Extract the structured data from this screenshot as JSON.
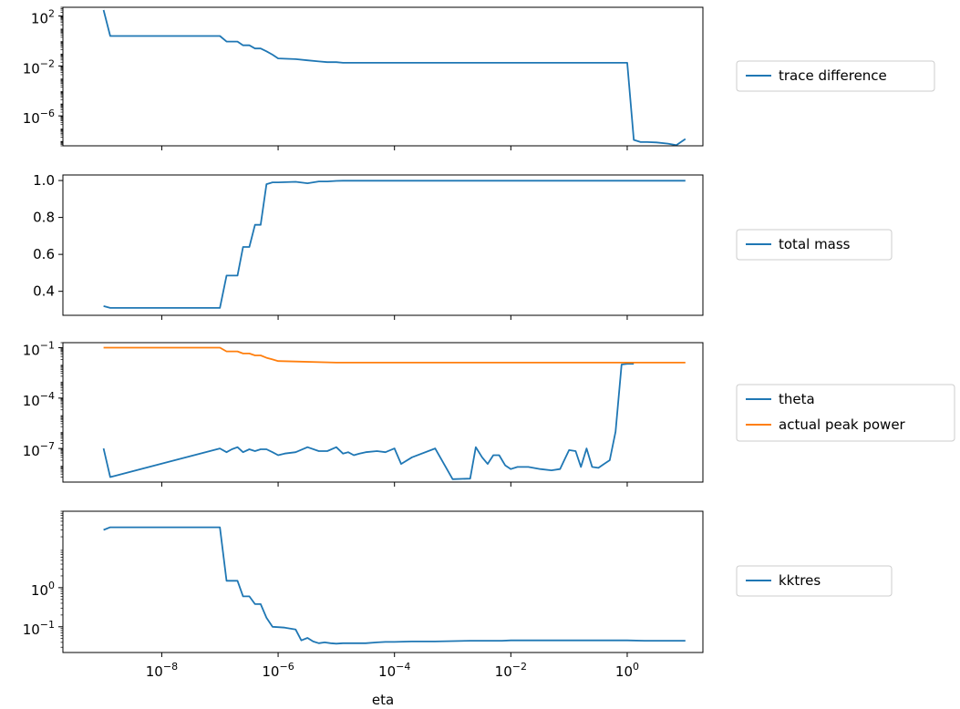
{
  "chart_data": [
    {
      "type": "line",
      "x_scale": "log",
      "y_scale": "log",
      "xlim": [
        2e-10,
        20
      ],
      "ylim": [
        4e-09,
        500
      ],
      "y_ticks": [
        {
          "value": 100,
          "label": "10",
          "exp": "2"
        },
        {
          "value": 0.01,
          "label": "10",
          "exp": "−2"
        },
        {
          "value": 1e-06,
          "label": "10",
          "exp": "−6"
        }
      ],
      "legend": "right",
      "series": [
        {
          "name": "trace difference",
          "color": "#1f77b4",
          "x": [
            1e-09,
            1.3e-09,
            1e-07,
            1.3e-07,
            2e-07,
            2.5e-07,
            3.2e-07,
            4e-07,
            5e-07,
            6.3e-07,
            8e-07,
            1e-06,
            2e-06,
            3.2e-06,
            5e-06,
            7e-06,
            1e-05,
            1.3e-05,
            0.0001,
            0.001,
            0.01,
            0.1,
            1.0,
            1.3,
            1.7,
            2.2,
            3.2,
            5.0,
            7.0,
            10.0
          ],
          "y": [
            300,
            2.5,
            2.5,
            0.9,
            0.9,
            0.45,
            0.45,
            0.25,
            0.25,
            0.15,
            0.08,
            0.04,
            0.035,
            0.028,
            0.023,
            0.02,
            0.02,
            0.018,
            0.018,
            0.018,
            0.018,
            0.018,
            0.018,
            1.2e-08,
            8e-09,
            8e-09,
            7.5e-09,
            6e-09,
            4.5e-09,
            1.4e-08
          ]
        }
      ]
    },
    {
      "type": "line",
      "x_scale": "log",
      "y_scale": "linear",
      "xlim": [
        2e-10,
        20
      ],
      "ylim": [
        0.27,
        1.03
      ],
      "y_ticks": [
        {
          "value": 1.0,
          "label": "1.0"
        },
        {
          "value": 0.8,
          "label": "0.8"
        },
        {
          "value": 0.6,
          "label": "0.6"
        },
        {
          "value": 0.4,
          "label": "0.4"
        }
      ],
      "legend": "right",
      "series": [
        {
          "name": "total mass",
          "color": "#1f77b4",
          "x": [
            1e-09,
            1.3e-09,
            1e-07,
            1.3e-07,
            2e-07,
            2.5e-07,
            3.2e-07,
            4e-07,
            5e-07,
            6.3e-07,
            8e-07,
            1e-06,
            2e-06,
            3.2e-06,
            5e-06,
            7e-06,
            1e-05,
            1.3e-05,
            3e-05,
            0.0001,
            0.001,
            0.01,
            0.1,
            1.0,
            10.0
          ],
          "y": [
            0.32,
            0.31,
            0.31,
            0.485,
            0.485,
            0.64,
            0.64,
            0.76,
            0.76,
            0.98,
            0.99,
            0.99,
            0.993,
            0.985,
            0.995,
            0.995,
            0.998,
            0.999,
            0.999,
            0.999,
            0.999,
            0.999,
            0.999,
            0.999,
            0.999
          ]
        }
      ]
    },
    {
      "type": "line",
      "x_scale": "log",
      "y_scale": "log",
      "xlim": [
        2e-10,
        20
      ],
      "ylim": [
        1e-09,
        0.2
      ],
      "y_ticks": [
        {
          "value": 0.1,
          "label": "10",
          "exp": "−1"
        },
        {
          "value": 0.0001,
          "label": "10",
          "exp": "−4"
        },
        {
          "value": 1e-07,
          "label": "10",
          "exp": "−7"
        }
      ],
      "legend": "right",
      "series": [
        {
          "name": "theta",
          "color": "#1f77b4",
          "x": [
            1e-09,
            1.3e-09,
            1e-07,
            1.3e-07,
            1.6e-07,
            2e-07,
            2.5e-07,
            3.2e-07,
            4e-07,
            5e-07,
            6.3e-07,
            8e-07,
            1e-06,
            1.3e-06,
            2e-06,
            3.2e-06,
            5e-06,
            7e-06,
            1e-05,
            1.3e-05,
            1.6e-05,
            2e-05,
            2.5e-05,
            3.2e-05,
            5e-05,
            7e-05,
            0.0001,
            0.00013,
            0.0002,
            0.0005,
            0.001,
            0.002,
            0.0025,
            0.0032,
            0.004,
            0.005,
            0.0063,
            0.008,
            0.01,
            0.013,
            0.016,
            0.02,
            0.032,
            0.05,
            0.07,
            0.1,
            0.13,
            0.16,
            0.2,
            0.25,
            0.32,
            0.4,
            0.5,
            0.63,
            0.8,
            1.0,
            1.3
          ],
          "y": [
            1e-07,
            2e-09,
            1e-07,
            6e-08,
            9e-08,
            1.2e-07,
            6e-08,
            9e-08,
            7e-08,
            9e-08,
            9e-08,
            6e-08,
            4e-08,
            5e-08,
            6e-08,
            1.2e-07,
            7e-08,
            7e-08,
            1.2e-07,
            5e-08,
            6e-08,
            4e-08,
            5e-08,
            6e-08,
            7e-08,
            6e-08,
            1e-07,
            1.2e-08,
            3e-08,
            1e-07,
            1.5e-09,
            1.6e-09,
            1.2e-07,
            3e-08,
            1.2e-08,
            4e-08,
            4e-08,
            1e-08,
            6e-09,
            8e-09,
            8e-09,
            8e-09,
            6e-09,
            5e-09,
            6e-09,
            8e-08,
            7e-08,
            8e-09,
            1e-07,
            8e-09,
            7e-09,
            1.2e-08,
            2e-08,
            1e-06,
            0.01,
            0.011,
            0.011
          ]
        },
        {
          "name": "actual peak power",
          "color": "#ff7f0e",
          "x": [
            1e-09,
            1e-07,
            1.3e-07,
            2e-07,
            2.5e-07,
            3.2e-07,
            4e-07,
            5e-07,
            6.3e-07,
            8e-07,
            1e-06,
            2e-06,
            1e-05,
            0.0001,
            0.001,
            0.01,
            0.1,
            1.0,
            10.0
          ],
          "y": [
            0.1,
            0.1,
            0.06,
            0.06,
            0.045,
            0.045,
            0.035,
            0.035,
            0.025,
            0.02,
            0.016,
            0.015,
            0.013,
            0.013,
            0.013,
            0.013,
            0.013,
            0.013,
            0.013
          ]
        }
      ]
    },
    {
      "type": "line",
      "x_scale": "log",
      "y_scale": "log",
      "xlim": [
        2e-10,
        20
      ],
      "ylim": [
        0.022,
        90
      ],
      "y_ticks": [
        {
          "value": 1,
          "label": "10",
          "exp": "0"
        },
        {
          "value": 0.1,
          "label": "10",
          "exp": "−1"
        }
      ],
      "x_ticks": [
        {
          "value": 1e-08,
          "label": "10",
          "exp": "−8"
        },
        {
          "value": 1e-06,
          "label": "10",
          "exp": "−6"
        },
        {
          "value": 0.0001,
          "label": "10",
          "exp": "−4"
        },
        {
          "value": 0.01,
          "label": "10",
          "exp": "−2"
        },
        {
          "value": 1,
          "label": "10",
          "exp": "0"
        }
      ],
      "xlabel": "eta",
      "legend": "right",
      "series": [
        {
          "name": "kktres",
          "color": "#1f77b4",
          "x": [
            1e-09,
            1.3e-09,
            1e-07,
            1.3e-07,
            2e-07,
            2.5e-07,
            3.2e-07,
            4e-07,
            5e-07,
            6.3e-07,
            8e-07,
            1e-06,
            1.3e-06,
            2e-06,
            2.5e-06,
            3.2e-06,
            4e-06,
            5e-06,
            6.3e-06,
            8e-06,
            1e-05,
            1.3e-05,
            2e-05,
            3.2e-05,
            5e-05,
            7e-05,
            0.0001,
            0.0002,
            0.0005,
            0.001,
            0.002,
            0.003,
            0.005,
            0.007,
            0.01,
            0.02,
            0.05,
            0.1,
            0.2,
            0.5,
            1.0,
            2.0,
            5.0,
            10.0
          ],
          "y": [
            30,
            35,
            35,
            1.5,
            1.5,
            0.6,
            0.6,
            0.38,
            0.38,
            0.17,
            0.1,
            0.098,
            0.095,
            0.085,
            0.045,
            0.052,
            0.042,
            0.038,
            0.04,
            0.038,
            0.037,
            0.038,
            0.038,
            0.038,
            0.04,
            0.041,
            0.041,
            0.042,
            0.042,
            0.043,
            0.044,
            0.044,
            0.044,
            0.044,
            0.045,
            0.045,
            0.045,
            0.045,
            0.045,
            0.045,
            0.045,
            0.044,
            0.044,
            0.044
          ]
        }
      ]
    }
  ]
}
